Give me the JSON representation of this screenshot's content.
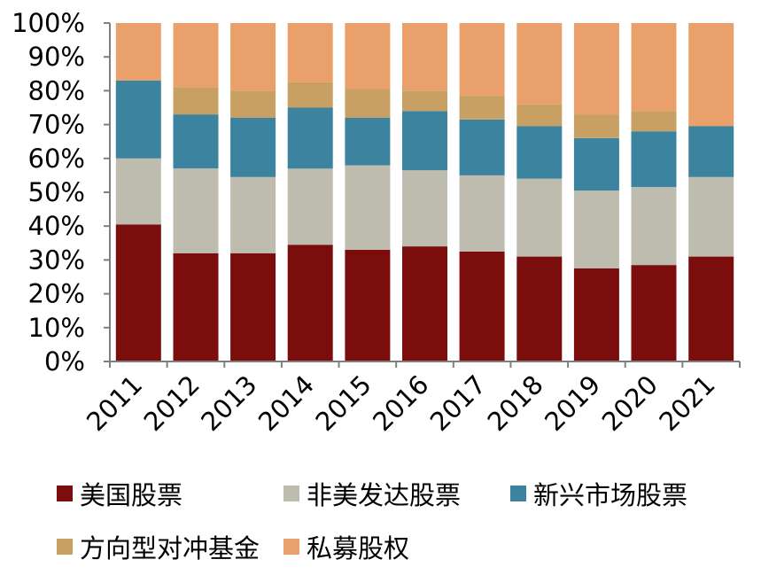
{
  "chart_data": {
    "type": "bar",
    "stacked": true,
    "categories": [
      "2011",
      "2012",
      "2013",
      "2014",
      "2015",
      "2016",
      "2017",
      "2018",
      "2019",
      "2020",
      "2021"
    ],
    "series": [
      {
        "name": "美国股票",
        "color": "#7b0d0d",
        "values": [
          40.5,
          32,
          32,
          34.5,
          33,
          34,
          32.5,
          31,
          27.5,
          28.5,
          31
        ]
      },
      {
        "name": "非美发达股票",
        "color": "#bdbcae",
        "values": [
          19.5,
          25,
          22.5,
          22.5,
          25,
          22.5,
          22.5,
          23,
          23,
          23,
          23.5
        ]
      },
      {
        "name": "新兴市场股票",
        "color": "#3b839e",
        "values": [
          23,
          16,
          17.5,
          18,
          14,
          17.5,
          16.5,
          15.5,
          15.5,
          16.5,
          15
        ]
      },
      {
        "name": "方向型对冲基金",
        "color": "#c8a063",
        "values": [
          0,
          8,
          8,
          7.5,
          8.5,
          6,
          7,
          6.5,
          7,
          6,
          0
        ]
      },
      {
        "name": "私募股权",
        "color": "#eaa06a",
        "values": [
          17,
          19,
          20,
          17.5,
          19.5,
          20,
          21.5,
          24,
          27,
          26,
          30.5
        ]
      }
    ],
    "y_ticks": [
      "0%",
      "10%",
      "20%",
      "30%",
      "40%",
      "50%",
      "60%",
      "70%",
      "80%",
      "90%",
      "100%"
    ],
    "ylim": [
      0,
      100
    ],
    "grid": false,
    "legend_position": "bottom",
    "title": "",
    "xlabel": "",
    "ylabel": ""
  }
}
